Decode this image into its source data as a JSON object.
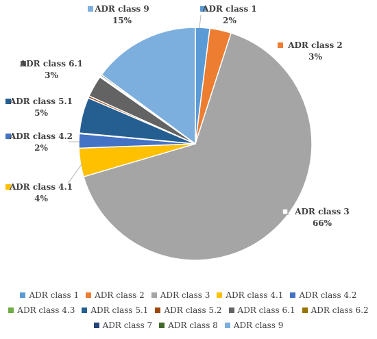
{
  "chart_data": {
    "type": "pie",
    "categories": [
      "ADR class 1",
      "ADR class 2",
      "ADR class 3",
      "ADR class 4.1",
      "ADR class 4.2",
      "ADR class 4.3",
      "ADR class 5.1",
      "ADR class 5.2",
      "ADR class 6.1",
      "ADR class 6.2",
      "ADR class 7",
      "ADR class 8",
      "ADR class 9"
    ],
    "values": [
      2,
      3,
      66,
      4,
      2,
      0.1,
      5,
      0.3,
      3,
      0.1,
      0.1,
      0.2,
      15
    ],
    "colors": [
      "#5B9BD5",
      "#ED7D31",
      "#A5A5A5",
      "#FFC000",
      "#4472C4",
      "#70AD47",
      "#255E91",
      "#9E480E",
      "#636363",
      "#997300",
      "#264478",
      "#43682B",
      "#7CAFDD"
    ],
    "data_labels": [
      {
        "category": "ADR class 1",
        "text": "2%"
      },
      {
        "category": "ADR class 2",
        "text": "3%"
      },
      {
        "category": "ADR class 3",
        "text": "66%"
      },
      {
        "category": "ADR class 4.1",
        "text": "4%"
      },
      {
        "category": "ADR class 4.2",
        "text": "2%"
      },
      {
        "category": "ADR class 5.1",
        "text": "5%"
      },
      {
        "category": "ADR class 6.1",
        "text": "3%"
      },
      {
        "category": "ADR class 9",
        "text": "15%"
      }
    ],
    "legend_position": "bottom",
    "title": ""
  }
}
